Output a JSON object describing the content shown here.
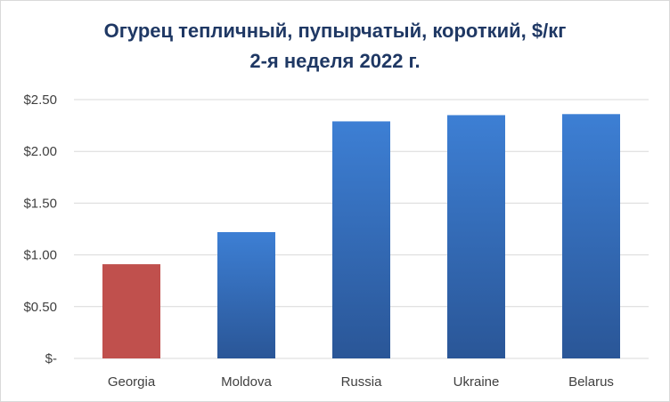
{
  "chart_data": {
    "type": "bar",
    "title_line1": "Огурец тепличный, пупырчатый, короткий, $/кг",
    "title_line2": "2-я неделя 2022 г.",
    "categories": [
      "Georgia",
      "Moldova",
      "Russia",
      "Ukraine",
      "Belarus"
    ],
    "values": [
      0.91,
      1.22,
      2.29,
      2.35,
      2.36
    ],
    "ylim": [
      0,
      2.5
    ],
    "y_ticks": [
      {
        "value": 0,
        "label": "$-"
      },
      {
        "value": 0.5,
        "label": "$0.50"
      },
      {
        "value": 1.0,
        "label": "$1.00"
      },
      {
        "value": 1.5,
        "label": "$1.50"
      },
      {
        "value": 2.0,
        "label": "$2.00"
      },
      {
        "value": 2.5,
        "label": "$2.50"
      }
    ],
    "grid": true,
    "legend": "none",
    "colors": {
      "highlight": "#c0504d",
      "bar_top": "#3d7fd4",
      "bar_bottom": "#2a5697",
      "gridline": "#d9d9d9",
      "title": "#1f3864"
    },
    "highlight_index": 0
  }
}
